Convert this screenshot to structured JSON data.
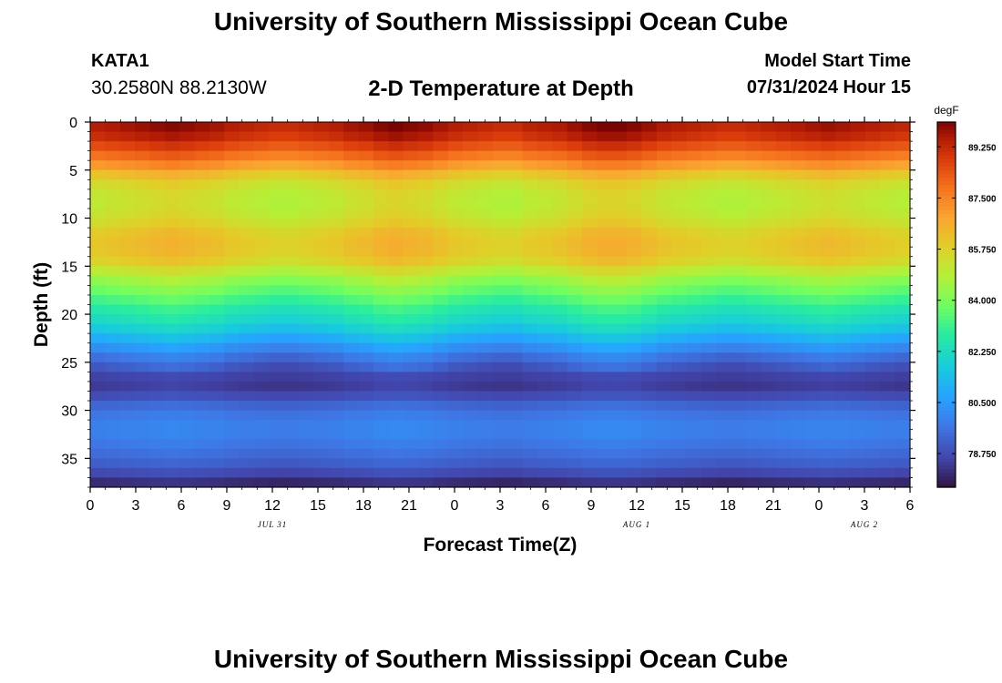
{
  "header": {
    "title": "University of Southern Mississippi Ocean Cube",
    "station_id": "KATA1",
    "station_coords": "30.2580N  88.2130W",
    "plot_title": "2-D Temperature at Depth",
    "model_start_label": "Model Start Time",
    "model_start_value": "07/31/2024 Hour 15"
  },
  "footer": {
    "title": "University of Southern Mississippi Ocean Cube"
  },
  "chart_data": {
    "type": "heatmap",
    "title": "2-D Temperature at Depth",
    "xlabel": "Forecast Time(Z)",
    "ylabel": "Depth (ft)",
    "x_ticks": [
      "0",
      "3",
      "6",
      "9",
      "12",
      "15",
      "18",
      "21",
      "0",
      "3",
      "6",
      "9",
      "12",
      "15",
      "18",
      "21",
      "0",
      "3",
      "6"
    ],
    "x_hours": [
      0,
      3,
      6,
      9,
      12,
      15,
      18,
      21,
      24,
      27,
      30,
      33,
      36,
      39,
      42,
      45,
      48,
      51,
      54
    ],
    "date_labels": [
      {
        "label": "JUL 31",
        "hour": 12
      },
      {
        "label": "AUG 1",
        "hour": 36
      },
      {
        "label": "AUG 2",
        "hour": 51
      }
    ],
    "y_ticks": [
      0,
      5,
      10,
      15,
      20,
      25,
      30,
      35
    ],
    "ylim": [
      0,
      38
    ],
    "xlim_hours": [
      0,
      54
    ],
    "colorbar": {
      "unit": "degF",
      "tick_values": [
        89.25,
        87.5,
        85.75,
        84.0,
        82.25,
        80.5,
        78.75
      ],
      "tick_labels": [
        "89.250",
        "87.500",
        "85.750",
        "84.000",
        "82.250",
        "80.500",
        "78.750"
      ],
      "range": [
        77.6,
        90.1
      ]
    },
    "depths_ft": [
      0,
      1,
      2,
      3,
      4,
      5,
      6,
      8,
      10,
      12,
      14,
      15,
      16,
      17,
      18,
      19,
      20,
      21,
      22,
      23,
      24,
      25,
      26,
      27,
      28,
      30,
      32,
      34,
      36,
      37,
      38
    ],
    "temperature_profile_degF": [
      89.6,
      89.4,
      88.9,
      88.2,
      87.5,
      86.6,
      85.6,
      85.0,
      85.3,
      86.1,
      86.0,
      85.4,
      84.6,
      84.0,
      83.5,
      82.9,
      82.4,
      82.0,
      81.3,
      80.6,
      79.9,
      79.2,
      78.8,
      78.3,
      78.5,
      79.6,
      80.0,
      79.6,
      79.0,
      78.4,
      77.8
    ],
    "hourly_anomaly_degF": [
      0.0,
      0.1,
      0.2,
      0.3,
      0.4,
      0.5,
      0.4,
      0.3,
      0.2,
      0.0,
      -0.1,
      -0.2,
      -0.3,
      -0.3,
      -0.2,
      -0.1,
      0.0,
      0.2,
      0.3,
      0.5,
      0.6,
      0.5,
      0.4,
      0.2,
      0.0,
      -0.1,
      -0.2,
      -0.3,
      -0.3,
      -0.1,
      0.0,
      0.1,
      0.3,
      0.5,
      0.6,
      0.6,
      0.5,
      0.3,
      0.1,
      0.0,
      -0.1,
      -0.2,
      -0.3,
      -0.3,
      -0.2,
      -0.1,
      0.0,
      0.1,
      0.2,
      0.3,
      0.2,
      0.1,
      0.0,
      -0.1,
      -0.2
    ]
  }
}
